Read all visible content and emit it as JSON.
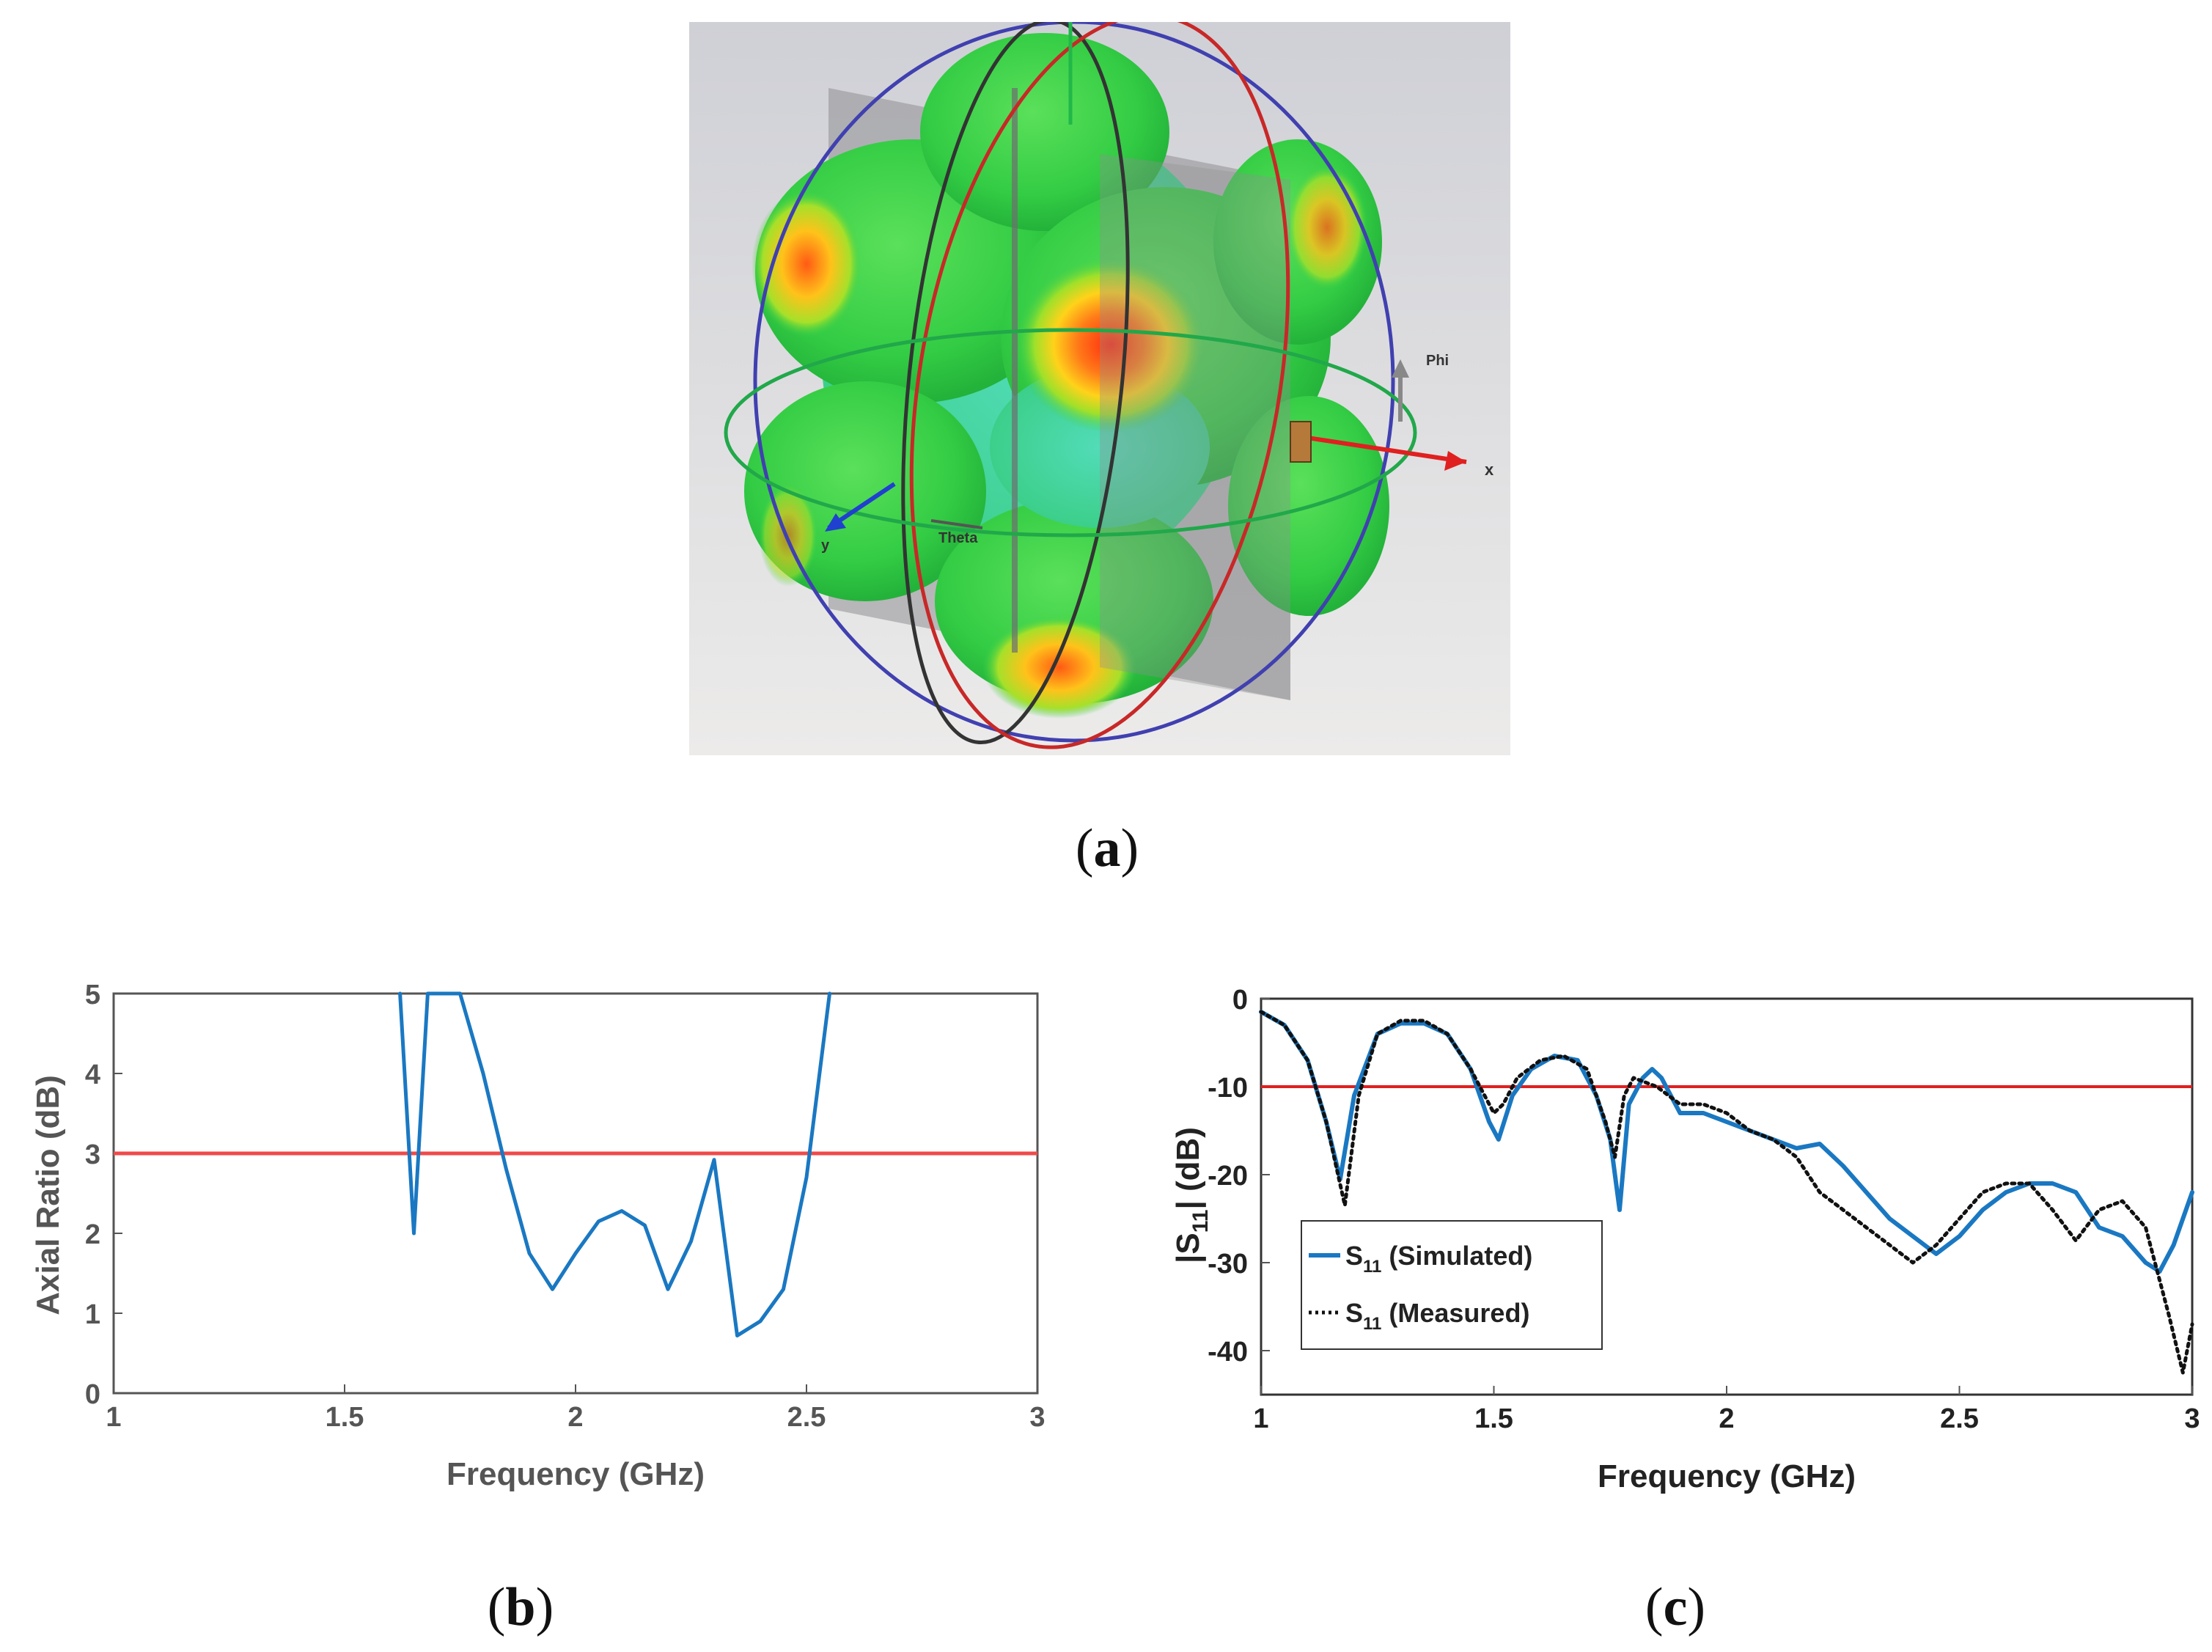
{
  "captions": {
    "a": "a",
    "b": "b",
    "c": "c"
  },
  "figure_a": {
    "labels": {
      "phi": "Phi",
      "theta": "Theta",
      "x": "x",
      "y": "y"
    },
    "colors": {
      "background": "#d9dadd",
      "lobe_green": "#3bd14a",
      "lobe_cyan": "#45d6a8",
      "hot": "#ff2a10",
      "warm": "#ffc21a",
      "plate": "#8f8f93"
    }
  },
  "chart_data": [
    {
      "type": "line",
      "xlabel": "Frequency (GHz)",
      "ylabel": "Axial Ratio (dB)",
      "xlim": [
        1,
        3
      ],
      "ylim": [
        0,
        5
      ],
      "xticks": [
        "1",
        "1.5",
        "2",
        "2.5",
        "3"
      ],
      "yticks": [
        "0",
        "1",
        "2",
        "3",
        "4",
        "5"
      ],
      "reference_line": {
        "y": 3,
        "color": "#f04a4a"
      },
      "series": [
        {
          "name": "Axial Ratio",
          "color": "#1a78c2",
          "x": [
            1.62,
            1.65,
            1.68,
            1.75,
            1.8,
            1.85,
            1.9,
            1.95,
            2.0,
            2.05,
            2.1,
            2.15,
            2.2,
            2.25,
            2.3,
            2.35,
            2.4,
            2.45,
            2.5,
            2.55
          ],
          "y": [
            5.0,
            2.0,
            5.0,
            5.0,
            4.0,
            2.8,
            1.75,
            1.3,
            1.75,
            2.15,
            2.28,
            2.1,
            1.3,
            1.9,
            2.92,
            0.72,
            0.9,
            1.3,
            2.7,
            5.0
          ]
        }
      ]
    },
    {
      "type": "line",
      "xlabel": "Frequency (GHz)",
      "ylabel": "|S11| (dB)",
      "ylabel_main": "|S",
      "ylabel_sub": "11",
      "ylabel_end": "| (dB)",
      "xlim": [
        1,
        3
      ],
      "ylim": [
        -45,
        0
      ],
      "xticks": [
        "1",
        "1.5",
        "2",
        "2.5",
        "3"
      ],
      "yticks": [
        "0",
        "-10",
        "-20",
        "-30",
        "-40"
      ],
      "reference_line": {
        "y": -10,
        "color": "#e02020"
      },
      "legend": {
        "position": "bottom-left",
        "entries": [
          {
            "main": "S",
            "sub": "11",
            "rest": " (Simulated)"
          },
          {
            "main": "S",
            "sub": "11",
            "rest": " (Measured)"
          }
        ]
      },
      "series": [
        {
          "name": "S11 (Simulated)",
          "color": "#1a78c2",
          "style": "solid",
          "x": [
            1.0,
            1.05,
            1.1,
            1.14,
            1.17,
            1.2,
            1.25,
            1.3,
            1.35,
            1.4,
            1.45,
            1.49,
            1.51,
            1.54,
            1.58,
            1.63,
            1.68,
            1.72,
            1.75,
            1.77,
            1.79,
            1.82,
            1.84,
            1.86,
            1.9,
            1.95,
            2.0,
            2.05,
            2.1,
            2.15,
            2.2,
            2.25,
            2.3,
            2.35,
            2.4,
            2.45,
            2.5,
            2.55,
            2.6,
            2.65,
            2.7,
            2.75,
            2.8,
            2.85,
            2.9,
            2.93,
            2.96,
            3.0
          ],
          "y": [
            -1.5,
            -3,
            -7,
            -14,
            -20.5,
            -11,
            -4,
            -2.8,
            -2.8,
            -4,
            -8,
            -14,
            -16,
            -11,
            -8,
            -6.5,
            -7,
            -11,
            -16,
            -24,
            -12,
            -9,
            -8,
            -9,
            -13,
            -13,
            -14,
            -15,
            -16,
            -17,
            -16.5,
            -19,
            -22,
            -25,
            -27,
            -29,
            -27,
            -24,
            -22,
            -21,
            -21,
            -22,
            -26,
            -27,
            -30,
            -31,
            -28,
            -22
          ]
        },
        {
          "name": "S11 (Measured)",
          "color": "#111111",
          "style": "dotted",
          "x": [
            1.0,
            1.05,
            1.1,
            1.14,
            1.18,
            1.21,
            1.25,
            1.3,
            1.35,
            1.4,
            1.45,
            1.5,
            1.52,
            1.55,
            1.6,
            1.65,
            1.7,
            1.74,
            1.76,
            1.78,
            1.8,
            1.85,
            1.9,
            1.95,
            2.0,
            2.05,
            2.1,
            2.15,
            2.2,
            2.25,
            2.3,
            2.35,
            2.4,
            2.45,
            2.5,
            2.55,
            2.6,
            2.65,
            2.7,
            2.75,
            2.8,
            2.85,
            2.9,
            2.95,
            2.98,
            3.0
          ],
          "y": [
            -1.5,
            -3,
            -7,
            -14,
            -23.5,
            -11,
            -4,
            -2.5,
            -2.5,
            -4,
            -8,
            -13,
            -12,
            -9,
            -7,
            -6.5,
            -8,
            -14,
            -18,
            -11,
            -9,
            -10,
            -12,
            -12,
            -13,
            -15,
            -16,
            -18,
            -22,
            -24,
            -26,
            -28,
            -30,
            -28,
            -25,
            -22,
            -21,
            -21,
            -24,
            -27.5,
            -24,
            -23,
            -26,
            -36,
            -42.5,
            -37
          ]
        }
      ]
    }
  ]
}
